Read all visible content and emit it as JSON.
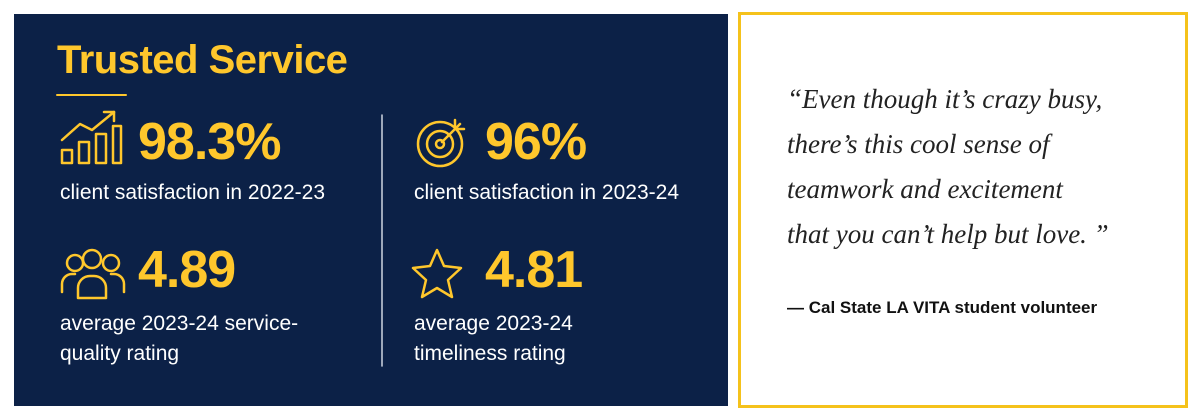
{
  "title": "Trusted Service",
  "stats": [
    {
      "value": "98.3%",
      "label_lines": [
        "client satisfaction in 2022-23"
      ]
    },
    {
      "value": "96%",
      "label_lines": [
        "client satisfaction in 2023-24"
      ]
    },
    {
      "value": "4.89",
      "label_lines": [
        "average 2023-24 service-",
        "quality rating"
      ]
    },
    {
      "value": "4.81",
      "label_lines": [
        "average 2023-24",
        "timeliness rating"
      ]
    }
  ],
  "quote": {
    "lines": [
      "“Even though it’s crazy busy,",
      "there’s this cool sense of",
      "teamwork and excitement",
      "that you can’t help but love. ”"
    ],
    "attribution": "— Cal State LA VITA student volunteer"
  }
}
